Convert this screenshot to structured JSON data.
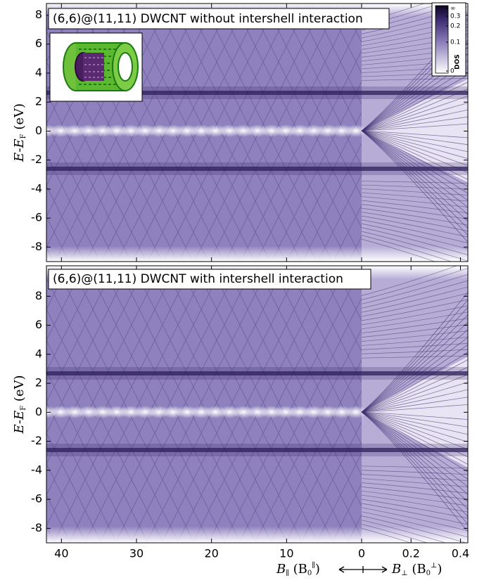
{
  "chart_data": [
    {
      "type": "heatmap",
      "title": "(6,6)@(11,11) DWCNT without intershell interaction",
      "ylabel": [
        "E-E",
        "F",
        " (eV)"
      ],
      "ylim": [
        -9,
        8.8
      ],
      "yticks": [
        -8,
        -6,
        -4,
        -2,
        0,
        2,
        4,
        6,
        8
      ],
      "colorbar": {
        "label": "DOS",
        "tick_labels": [
          "0",
          "0.1",
          "0.2",
          "0.3",
          "∞"
        ]
      }
    },
    {
      "type": "heatmap",
      "title": "(6,6)@(11,11) DWCNT with intershell interaction",
      "ylabel": [
        "E-E",
        "F",
        " (eV)"
      ],
      "ylim": [
        -9,
        10.1
      ],
      "yticks": [
        -8,
        -6,
        -4,
        -2,
        0,
        2,
        4,
        6,
        8
      ],
      "x_left": {
        "xlim": [
          42,
          0
        ],
        "xticks": [
          40,
          30,
          20,
          10,
          0
        ]
      },
      "x_right": {
        "xlim": [
          0,
          0.43
        ],
        "xticks": [
          0.2,
          0.4
        ]
      },
      "xlabel_left": [
        "B",
        "∥",
        " (B",
        "0",
        "∥",
        ")"
      ],
      "xlabel_right": [
        "B",
        "⊥",
        " (B",
        "0",
        "⊥",
        ")"
      ]
    }
  ]
}
